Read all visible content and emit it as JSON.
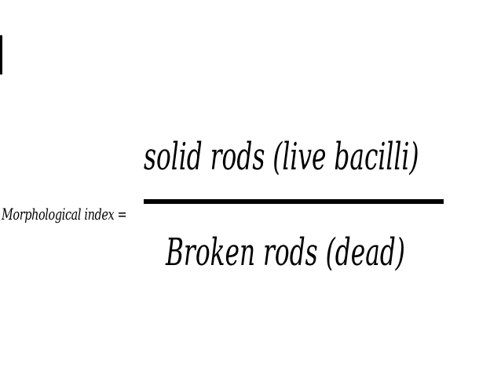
{
  "formula": {
    "lhs": "Morphological index =",
    "numerator": "solid rods (live bacilli)",
    "denominator": "Broken rods (dead)"
  }
}
